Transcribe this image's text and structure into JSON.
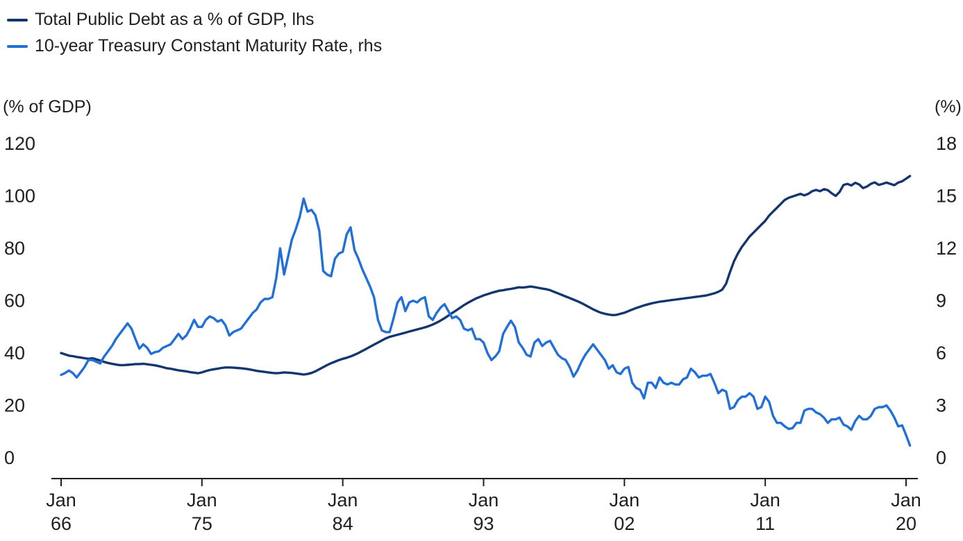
{
  "legend": {
    "items": [
      {
        "label": "Total Public Debt as a % of GDP, lhs",
        "color": "#14366e"
      },
      {
        "label": "10-year Treasury Constant Maturity Rate, rhs",
        "color": "#2170d8"
      }
    ]
  },
  "axes": {
    "left": {
      "unit_label": "(% of GDP)",
      "ticks": [
        0,
        20,
        40,
        60,
        80,
        100,
        120
      ],
      "range": [
        0,
        120
      ]
    },
    "right": {
      "unit_label": "(%)",
      "ticks": [
        0,
        3,
        6,
        9,
        12,
        15,
        18
      ],
      "range": [
        0,
        18
      ]
    },
    "x": {
      "ticks": [
        {
          "top": "Jan",
          "bottom": "66",
          "year": 1966
        },
        {
          "top": "Jan",
          "bottom": "75",
          "year": 1975
        },
        {
          "top": "Jan",
          "bottom": "84",
          "year": 1984
        },
        {
          "top": "Jan",
          "bottom": "93",
          "year": 1993
        },
        {
          "top": "Jan",
          "bottom": "02",
          "year": 2002
        },
        {
          "top": "Jan",
          "bottom": "11",
          "year": 2011
        },
        {
          "top": "Jan",
          "bottom": "20",
          "year": 2020
        }
      ]
    }
  },
  "chart_data": {
    "type": "line",
    "title": "",
    "xlabel": "",
    "x_start": 1966.0,
    "x_step": 0.25,
    "x_range": [
      1966,
      2020.25
    ],
    "ylim_left": [
      0,
      120
    ],
    "ylim_right": [
      0,
      18
    ],
    "grid": false,
    "legend_position": "top-left",
    "series": [
      {
        "name": "Total Public Debt as a % of GDP, lhs",
        "axis": "left",
        "color": "#14366e",
        "values": [
          40.0,
          39.5,
          39.0,
          38.8,
          38.5,
          38.3,
          38.0,
          37.8,
          38.0,
          37.6,
          37.1,
          36.6,
          36.2,
          35.9,
          35.6,
          35.4,
          35.4,
          35.5,
          35.6,
          35.8,
          35.8,
          35.9,
          35.7,
          35.5,
          35.3,
          35.0,
          34.6,
          34.2,
          34.0,
          33.7,
          33.4,
          33.2,
          33.0,
          32.7,
          32.5,
          32.3,
          32.6,
          33.1,
          33.5,
          33.8,
          34.0,
          34.3,
          34.5,
          34.5,
          34.4,
          34.3,
          34.2,
          34.0,
          33.8,
          33.5,
          33.2,
          33.0,
          32.8,
          32.6,
          32.4,
          32.3,
          32.4,
          32.6,
          32.5,
          32.4,
          32.2,
          32.0,
          31.8,
          32.0,
          32.4,
          33.0,
          33.8,
          34.6,
          35.4,
          36.1,
          36.7,
          37.3,
          37.8,
          38.2,
          38.7,
          39.3,
          40.0,
          40.8,
          41.6,
          42.4,
          43.2,
          44.0,
          44.8,
          45.6,
          46.2,
          46.6,
          47.0,
          47.4,
          47.8,
          48.2,
          48.6,
          49.0,
          49.4,
          49.8,
          50.3,
          50.9,
          51.6,
          52.4,
          53.3,
          54.3,
          55.3,
          56.3,
          57.3,
          58.3,
          59.2,
          60.0,
          60.8,
          61.4,
          62.0,
          62.5,
          63.0,
          63.4,
          63.8,
          64.0,
          64.3,
          64.5,
          64.8,
          65.1,
          65.0,
          65.2,
          65.4,
          65.2,
          64.9,
          64.6,
          64.4,
          64.0,
          63.4,
          62.8,
          62.2,
          61.6,
          61.0,
          60.4,
          59.8,
          59.1,
          58.3,
          57.5,
          56.7,
          56.0,
          55.4,
          55.0,
          54.7,
          54.5,
          54.6,
          55.0,
          55.4,
          56.0,
          56.6,
          57.2,
          57.7,
          58.2,
          58.6,
          59.0,
          59.3,
          59.6,
          59.8,
          60.0,
          60.2,
          60.4,
          60.6,
          60.8,
          61.0,
          61.2,
          61.4,
          61.6,
          61.8,
          62.0,
          62.4,
          62.8,
          63.4,
          64.2,
          66.5,
          71.0,
          75.0,
          78.0,
          80.5,
          82.5,
          84.5,
          86.0,
          87.5,
          89.0,
          90.5,
          92.5,
          94.0,
          95.5,
          97.0,
          98.5,
          99.3,
          99.8,
          100.3,
          100.8,
          100.2,
          100.8,
          101.8,
          102.3,
          101.8,
          102.6,
          102.2,
          101.0,
          100.0,
          101.5,
          104.2,
          104.6,
          104.0,
          105.0,
          104.4,
          103.0,
          103.6,
          104.6,
          105.2,
          104.2,
          104.6,
          105.1,
          104.6,
          104.1,
          105.1,
          105.6,
          106.6,
          107.6
        ]
      },
      {
        "name": "10-year Treasury Constant Maturity Rate, rhs",
        "axis": "right",
        "color": "#2170d8",
        "values": [
          4.75,
          4.85,
          5.0,
          4.85,
          4.6,
          4.9,
          5.2,
          5.6,
          5.6,
          5.5,
          5.4,
          5.8,
          6.1,
          6.4,
          6.8,
          7.1,
          7.4,
          7.7,
          7.4,
          6.8,
          6.25,
          6.5,
          6.3,
          5.95,
          6.05,
          6.1,
          6.3,
          6.4,
          6.5,
          6.8,
          7.1,
          6.8,
          7.0,
          7.4,
          7.9,
          7.5,
          7.5,
          7.9,
          8.1,
          8.0,
          7.8,
          7.9,
          7.6,
          7.0,
          7.2,
          7.3,
          7.4,
          7.7,
          8.0,
          8.3,
          8.5,
          8.9,
          9.1,
          9.1,
          9.2,
          10.3,
          12.0,
          10.5,
          11.5,
          12.5,
          13.1,
          13.8,
          14.85,
          14.1,
          14.2,
          13.9,
          13.0,
          10.7,
          10.5,
          10.4,
          11.4,
          11.7,
          11.8,
          12.8,
          13.2,
          11.9,
          11.4,
          10.8,
          10.3,
          9.8,
          9.2,
          7.9,
          7.3,
          7.2,
          7.2,
          8.0,
          8.9,
          9.2,
          8.4,
          8.9,
          9.0,
          8.9,
          9.1,
          9.2,
          8.1,
          7.9,
          8.3,
          8.6,
          8.8,
          8.4,
          8.0,
          8.1,
          7.9,
          7.4,
          7.3,
          7.4,
          6.8,
          6.8,
          6.6,
          6.0,
          5.6,
          5.8,
          6.1,
          7.1,
          7.5,
          7.85,
          7.5,
          6.6,
          6.3,
          5.9,
          5.8,
          6.6,
          6.8,
          6.4,
          6.6,
          6.7,
          6.3,
          5.9,
          5.7,
          5.6,
          5.2,
          4.65,
          5.0,
          5.5,
          5.9,
          6.2,
          6.5,
          6.2,
          5.9,
          5.6,
          5.1,
          5.3,
          4.9,
          4.8,
          5.1,
          5.2,
          4.3,
          4.0,
          3.9,
          3.4,
          4.3,
          4.3,
          4.0,
          4.6,
          4.3,
          4.2,
          4.3,
          4.2,
          4.2,
          4.5,
          4.6,
          5.1,
          4.9,
          4.6,
          4.7,
          4.7,
          4.8,
          4.3,
          3.7,
          3.9,
          3.8,
          2.8,
          2.9,
          3.3,
          3.5,
          3.5,
          3.7,
          3.5,
          2.8,
          2.9,
          3.5,
          3.2,
          2.4,
          2.0,
          2.0,
          1.8,
          1.65,
          1.7,
          2.0,
          2.0,
          2.7,
          2.8,
          2.8,
          2.6,
          2.5,
          2.3,
          2.0,
          2.2,
          2.2,
          2.3,
          1.9,
          1.8,
          1.6,
          2.1,
          2.4,
          2.2,
          2.2,
          2.4,
          2.8,
          2.9,
          2.9,
          3.0,
          2.7,
          2.3,
          1.8,
          1.85,
          1.3,
          0.7
        ]
      }
    ]
  }
}
